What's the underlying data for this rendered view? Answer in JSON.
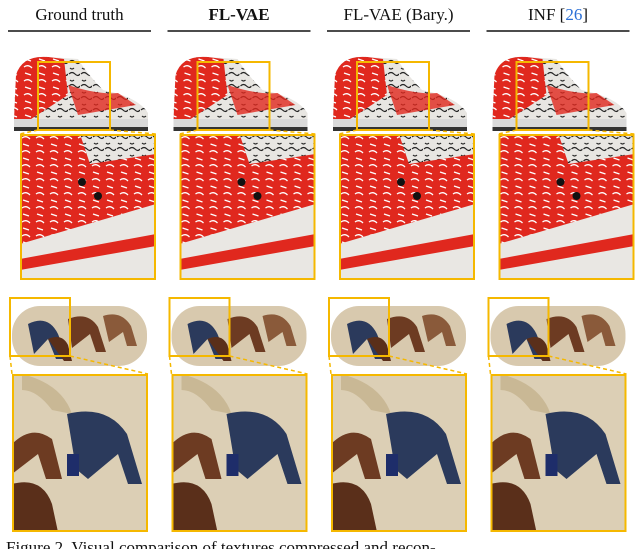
{
  "columns": [
    {
      "label_parts": [
        "Ground truth"
      ]
    },
    {
      "label_parts": [
        "FL-VAE"
      ],
      "bold": true
    },
    {
      "label_parts": [
        "FL-VAE (Bary.)"
      ]
    },
    {
      "label_parts": [
        "INF [",
        "26",
        "]"
      ]
    }
  ],
  "caption": "Figure 2.  Visual comparison of textures compressed and recon-"
}
